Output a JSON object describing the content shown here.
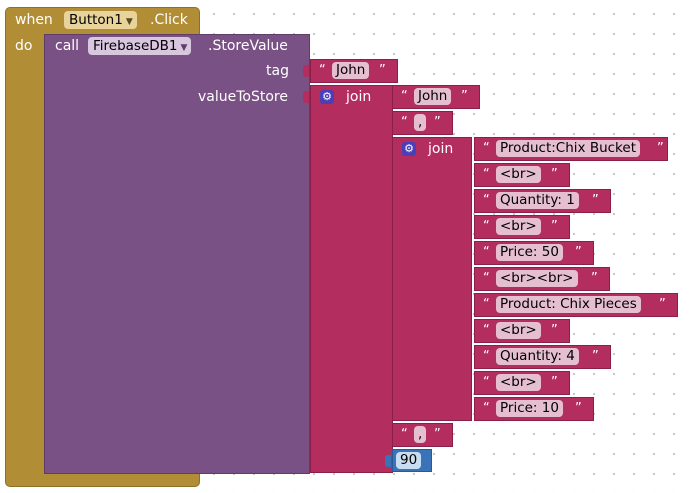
{
  "event": {
    "when": "when",
    "component": "Button1",
    "event_name": ".Click",
    "do": "do"
  },
  "call": {
    "call": "call",
    "component": "FirebaseDB1",
    "method": ".StoreValue",
    "tag_label": "tag",
    "value_label": "valueToStore"
  },
  "tag_value": "John",
  "outer_join": {
    "label": "join",
    "first": "John",
    "separator": ",",
    "separator2": ",",
    "number": "90"
  },
  "inner_join": {
    "label": "join",
    "items": [
      "Product:Chix Bucket",
      "<br>",
      "Quantity: 1",
      "<br>",
      "Price: 50",
      "<br><br>",
      "Product: Chix Pieces",
      "<br>",
      "Quantity: 4",
      "<br>",
      "Price: 10"
    ]
  },
  "icons": {
    "gear": "gear-icon",
    "dropdown": "chevron-down-icon"
  },
  "colors": {
    "event": "#b18e35",
    "component": "#7a5185",
    "text": "#b32d5e",
    "number": "#3a73b8",
    "gear": "#4a3fb8"
  }
}
